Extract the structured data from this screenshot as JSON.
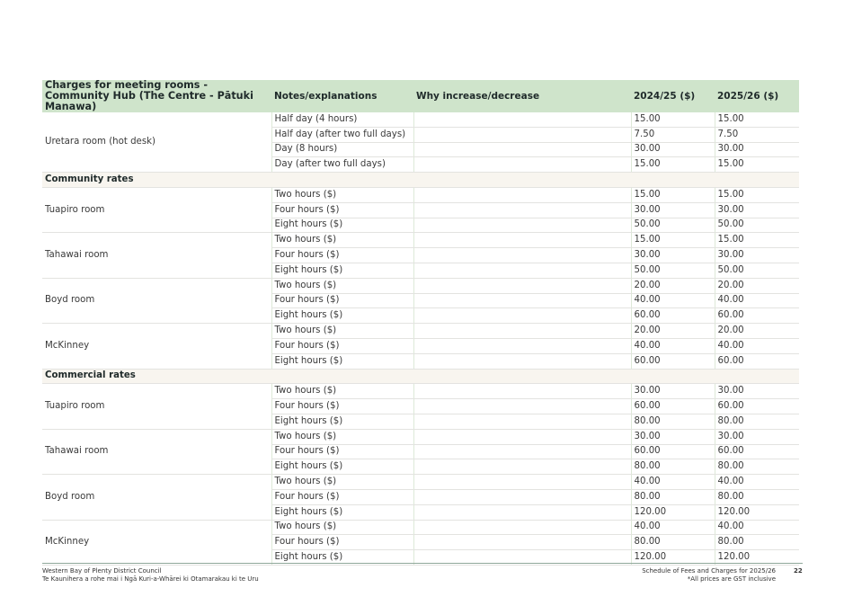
{
  "table": {
    "headers": [
      "Charges for meeting rooms - Community Hub (The Centre - Pātuki Manawa)",
      "Notes/explanations",
      "Why increase/decrease",
      "2024/25 ($)",
      "2025/26 ($)"
    ],
    "groups": [
      {
        "room": "Uretara room (hot desk)",
        "rows": [
          {
            "note": "Half day (4 hours)",
            "why": "",
            "v2425": "15.00",
            "v2526": "15.00"
          },
          {
            "note": "Half day (after two full days)",
            "why": "",
            "v2425": "7.50",
            "v2526": "7.50"
          },
          {
            "note": "Day (8 hours)",
            "why": "",
            "v2425": "30.00",
            "v2526": "30.00"
          },
          {
            "note": "Day (after two full days)",
            "why": "",
            "v2425": "15.00",
            "v2526": "15.00"
          }
        ]
      },
      {
        "section": "Community rates"
      },
      {
        "room": "Tuapiro room",
        "rows": [
          {
            "note": "Two hours ($)",
            "why": "",
            "v2425": "15.00",
            "v2526": "15.00"
          },
          {
            "note": "Four hours ($)",
            "why": "",
            "v2425": "30.00",
            "v2526": "30.00"
          },
          {
            "note": "Eight hours ($)",
            "why": "",
            "v2425": "50.00",
            "v2526": "50.00"
          }
        ]
      },
      {
        "room": "Tahawai room",
        "rows": [
          {
            "note": "Two hours ($)",
            "why": "",
            "v2425": "15.00",
            "v2526": "15.00"
          },
          {
            "note": "Four hours ($)",
            "why": "",
            "v2425": "30.00",
            "v2526": "30.00"
          },
          {
            "note": "Eight hours ($)",
            "why": "",
            "v2425": "50.00",
            "v2526": "50.00"
          }
        ]
      },
      {
        "room": "Boyd room",
        "rows": [
          {
            "note": "Two hours ($)",
            "why": "",
            "v2425": "20.00",
            "v2526": "20.00"
          },
          {
            "note": "Four hours ($)",
            "why": "",
            "v2425": "40.00",
            "v2526": "40.00"
          },
          {
            "note": "Eight hours ($)",
            "why": "",
            "v2425": "60.00",
            "v2526": "60.00"
          }
        ]
      },
      {
        "room": "McKinney",
        "rows": [
          {
            "note": "Two hours ($)",
            "why": "",
            "v2425": "20.00",
            "v2526": "20.00"
          },
          {
            "note": "Four hours ($)",
            "why": "",
            "v2425": "40.00",
            "v2526": "40.00"
          },
          {
            "note": "Eight hours ($)",
            "why": "",
            "v2425": "60.00",
            "v2526": "60.00"
          }
        ]
      },
      {
        "section": "Commercial rates"
      },
      {
        "room": "Tuapiro room",
        "rows": [
          {
            "note": "Two hours ($)",
            "why": "",
            "v2425": "30.00",
            "v2526": "30.00"
          },
          {
            "note": "Four hours ($)",
            "why": "",
            "v2425": "60.00",
            "v2526": "60.00"
          },
          {
            "note": "Eight hours ($)",
            "why": "",
            "v2425": "80.00",
            "v2526": "80.00"
          }
        ]
      },
      {
        "room": "Tahawai room",
        "rows": [
          {
            "note": "Two hours ($)",
            "why": "",
            "v2425": "30.00",
            "v2526": "30.00"
          },
          {
            "note": "Four hours ($)",
            "why": "",
            "v2425": "60.00",
            "v2526": "60.00"
          },
          {
            "note": "Eight hours ($)",
            "why": "",
            "v2425": "80.00",
            "v2526": "80.00"
          }
        ]
      },
      {
        "room": "Boyd room",
        "rows": [
          {
            "note": "Two hours ($)",
            "why": "",
            "v2425": "40.00",
            "v2526": "40.00"
          },
          {
            "note": "Four hours ($)",
            "why": "",
            "v2425": "80.00",
            "v2526": "80.00"
          },
          {
            "note": "Eight hours ($)",
            "why": "",
            "v2425": "120.00",
            "v2526": "120.00"
          }
        ]
      },
      {
        "room": "McKinney",
        "rows": [
          {
            "note": "Two hours ($)",
            "why": "",
            "v2425": "40.00",
            "v2526": "40.00"
          },
          {
            "note": "Four hours ($)",
            "why": "",
            "v2425": "80.00",
            "v2526": "80.00"
          },
          {
            "note": "Eight hours ($)",
            "why": "",
            "v2425": "120.00",
            "v2526": "120.00"
          }
        ]
      }
    ]
  },
  "footer": {
    "org": "Western Bay of Plenty District Council",
    "org_maori": "Te Kaunihera a rohe mai i Ngā Kuri-a-Whārei ki Otamarakau ki te Uru",
    "doc_title": "Schedule of Fees and Charges for 2025/26",
    "gst_note": "*All prices are GST inclusive",
    "page_number": "22"
  }
}
